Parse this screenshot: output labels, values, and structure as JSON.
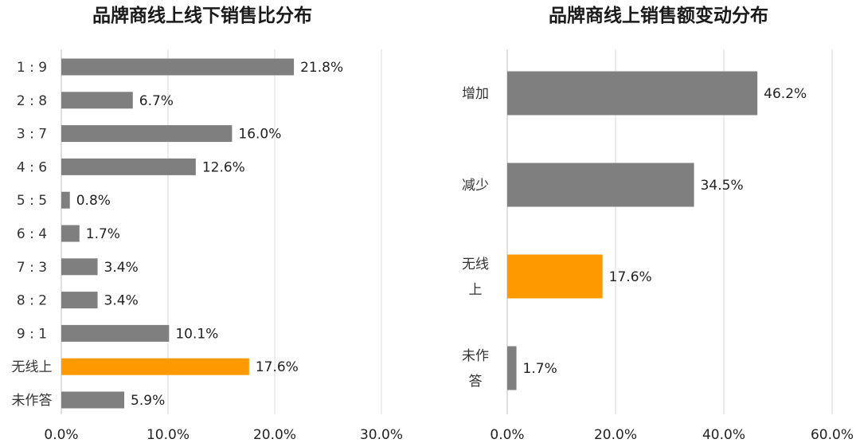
{
  "chart_data": [
    {
      "type": "bar",
      "orientation": "horizontal",
      "title": "品牌商线上线下销售比分布",
      "categories": [
        "1 : 9",
        "2 : 8",
        "3 : 7",
        "4 : 6",
        "5 : 5",
        "6 : 4",
        "7 : 3",
        "8 : 2",
        "9 : 1",
        "无线上",
        "未作答"
      ],
      "values": [
        21.8,
        6.7,
        16.0,
        12.6,
        0.8,
        1.7,
        3.4,
        3.4,
        10.1,
        17.6,
        5.9
      ],
      "value_labels": [
        "21.8%",
        "6.7%",
        "16.0%",
        "12.6%",
        "0.8%",
        "1.7%",
        "3.4%",
        "3.4%",
        "10.1%",
        "17.6%",
        "5.9%"
      ],
      "highlight_index": 9,
      "xlim": [
        0,
        30
      ],
      "xticks": [
        0,
        10,
        20,
        30
      ],
      "xtick_labels": [
        "0.0%",
        "10.0%",
        "20.0%",
        "30.0%"
      ],
      "grid": true,
      "colors": {
        "bar": "#7f7f7f",
        "highlight": "#ff9900"
      }
    },
    {
      "type": "bar",
      "orientation": "horizontal",
      "title": "品牌商线上销售额变动分布",
      "categories": [
        "增加",
        "减少",
        "无线上",
        "未作答"
      ],
      "category_lines": [
        [
          "增加"
        ],
        [
          "减少"
        ],
        [
          "无线",
          "上"
        ],
        [
          "未作",
          "答"
        ]
      ],
      "values": [
        46.2,
        34.5,
        17.6,
        1.7
      ],
      "value_labels": [
        "46.2%",
        "34.5%",
        "17.6%",
        "1.7%"
      ],
      "highlight_index": 2,
      "xlim": [
        0,
        60
      ],
      "xticks": [
        0,
        20,
        40,
        60
      ],
      "xtick_labels": [
        "0.0%",
        "20.0%",
        "40.0%",
        "60.0%"
      ],
      "grid": true,
      "colors": {
        "bar": "#7f7f7f",
        "highlight": "#ff9900"
      }
    }
  ]
}
